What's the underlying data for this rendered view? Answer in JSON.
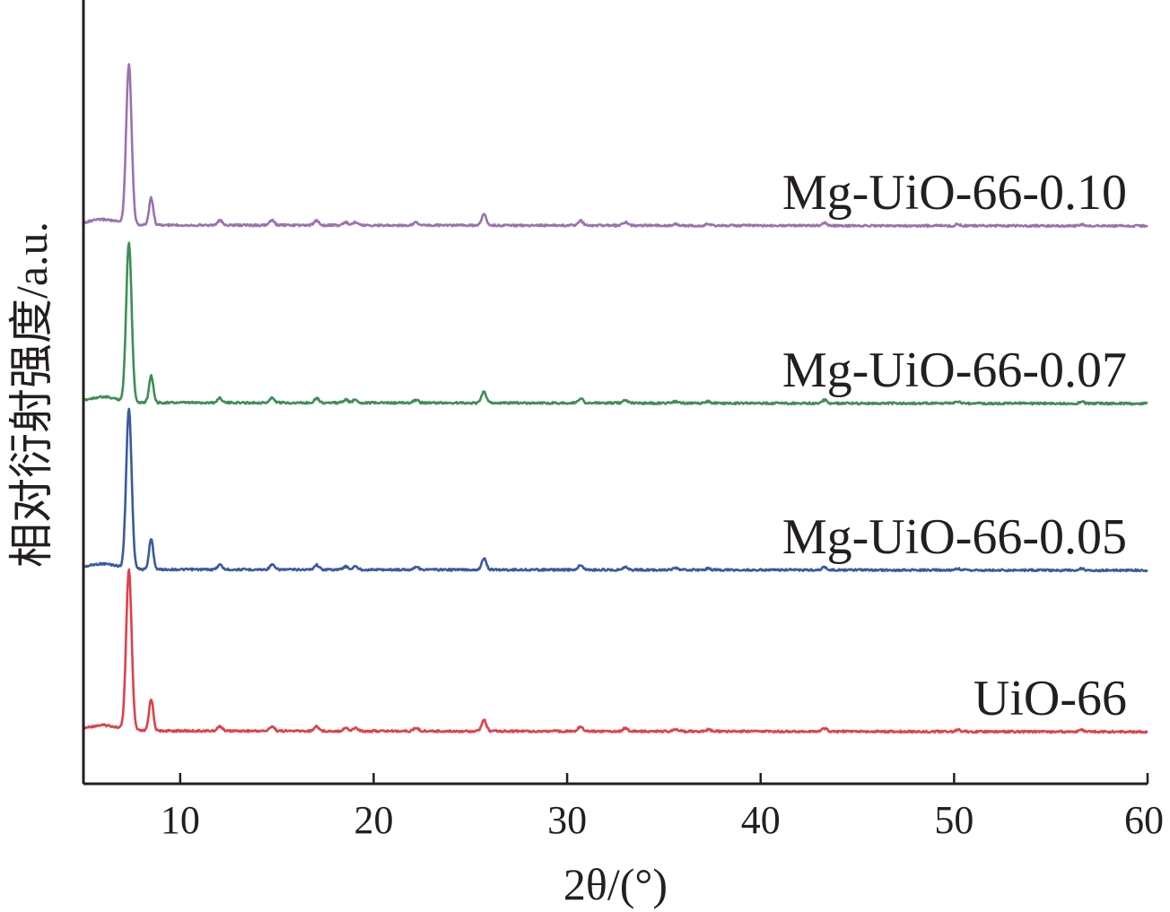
{
  "chart_data": {
    "type": "line",
    "title": "",
    "xlabel": "2θ/(°)",
    "ylabel": "相对衍射强度/a.u.",
    "xlim": [
      5,
      60
    ],
    "xticks": [
      10,
      20,
      30,
      40,
      50,
      60
    ],
    "grid": false,
    "legend": "labels placed at right above each curve",
    "stacked_offset": true,
    "series": [
      {
        "name": "UiO-66",
        "color": "#e0404a",
        "baseline": 0,
        "peaks": [
          {
            "x": 7.35,
            "h": 1.0
          },
          {
            "x": 8.5,
            "h": 0.2
          },
          {
            "x": 12.05,
            "h": 0.03
          },
          {
            "x": 14.75,
            "h": 0.03
          },
          {
            "x": 17.05,
            "h": 0.03
          },
          {
            "x": 18.55,
            "h": 0.02
          },
          {
            "x": 19.05,
            "h": 0.02
          },
          {
            "x": 22.2,
            "h": 0.02
          },
          {
            "x": 25.7,
            "h": 0.07
          },
          {
            "x": 30.7,
            "h": 0.03
          },
          {
            "x": 33.0,
            "h": 0.02
          },
          {
            "x": 35.6,
            "h": 0.01
          },
          {
            "x": 37.3,
            "h": 0.01
          },
          {
            "x": 43.3,
            "h": 0.02
          },
          {
            "x": 50.2,
            "h": 0.01
          },
          {
            "x": 56.6,
            "h": 0.01
          }
        ]
      },
      {
        "name": "Mg-UiO-66-0.05",
        "color": "#3a5aa0",
        "baseline": 1,
        "peaks": [
          {
            "x": 7.35,
            "h": 1.0
          },
          {
            "x": 8.5,
            "h": 0.19
          },
          {
            "x": 12.05,
            "h": 0.03
          },
          {
            "x": 14.75,
            "h": 0.03
          },
          {
            "x": 17.05,
            "h": 0.03
          },
          {
            "x": 18.55,
            "h": 0.02
          },
          {
            "x": 19.05,
            "h": 0.02
          },
          {
            "x": 22.2,
            "h": 0.02
          },
          {
            "x": 25.7,
            "h": 0.07
          },
          {
            "x": 30.7,
            "h": 0.03
          },
          {
            "x": 33.0,
            "h": 0.02
          },
          {
            "x": 35.6,
            "h": 0.01
          },
          {
            "x": 37.3,
            "h": 0.01
          },
          {
            "x": 43.3,
            "h": 0.02
          },
          {
            "x": 50.2,
            "h": 0.01
          },
          {
            "x": 56.6,
            "h": 0.01
          }
        ]
      },
      {
        "name": "Mg-UiO-66-0.07",
        "color": "#3d8f55",
        "baseline": 2,
        "peaks": [
          {
            "x": 7.35,
            "h": 1.0
          },
          {
            "x": 8.5,
            "h": 0.17
          },
          {
            "x": 12.05,
            "h": 0.03
          },
          {
            "x": 14.75,
            "h": 0.03
          },
          {
            "x": 17.05,
            "h": 0.03
          },
          {
            "x": 18.55,
            "h": 0.02
          },
          {
            "x": 19.05,
            "h": 0.02
          },
          {
            "x": 22.2,
            "h": 0.02
          },
          {
            "x": 25.7,
            "h": 0.07
          },
          {
            "x": 30.7,
            "h": 0.03
          },
          {
            "x": 33.0,
            "h": 0.02
          },
          {
            "x": 35.6,
            "h": 0.01
          },
          {
            "x": 37.3,
            "h": 0.01
          },
          {
            "x": 43.3,
            "h": 0.02
          },
          {
            "x": 50.2,
            "h": 0.01
          },
          {
            "x": 56.6,
            "h": 0.01
          }
        ]
      },
      {
        "name": "Mg-UiO-66-0.10",
        "color": "#9b72b0",
        "baseline": 3,
        "peaks": [
          {
            "x": 7.35,
            "h": 1.0
          },
          {
            "x": 8.5,
            "h": 0.17
          },
          {
            "x": 12.05,
            "h": 0.03
          },
          {
            "x": 14.75,
            "h": 0.03
          },
          {
            "x": 17.05,
            "h": 0.03
          },
          {
            "x": 18.55,
            "h": 0.02
          },
          {
            "x": 19.05,
            "h": 0.02
          },
          {
            "x": 22.2,
            "h": 0.02
          },
          {
            "x": 25.7,
            "h": 0.07
          },
          {
            "x": 30.7,
            "h": 0.03
          },
          {
            "x": 33.0,
            "h": 0.02
          },
          {
            "x": 35.6,
            "h": 0.01
          },
          {
            "x": 37.3,
            "h": 0.01
          },
          {
            "x": 43.3,
            "h": 0.02
          },
          {
            "x": 50.2,
            "h": 0.01
          },
          {
            "x": 56.6,
            "h": 0.01
          }
        ]
      }
    ]
  }
}
